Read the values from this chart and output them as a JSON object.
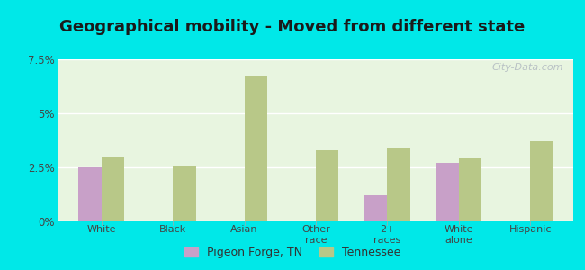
{
  "title": "Geographical mobility - Moved from different state",
  "categories": [
    "White",
    "Black",
    "Asian",
    "Other\nrace",
    "2+\nraces",
    "White\nalone",
    "Hispanic"
  ],
  "pigeon_forge": [
    2.5,
    0.0,
    0.0,
    0.0,
    1.2,
    2.7,
    0.0
  ],
  "tennessee": [
    3.0,
    2.6,
    6.7,
    3.3,
    3.4,
    2.9,
    3.7
  ],
  "pigeon_forge_color": "#c8a0c8",
  "tennessee_color": "#b8c888",
  "background_plot_top": "#e8f5e0",
  "background_plot_bottom": "#f5fff5",
  "background_fig": "#00e8e8",
  "ylim": [
    0,
    7.5
  ],
  "yticks": [
    0,
    2.5,
    5.0,
    7.5
  ],
  "ytick_labels": [
    "0%",
    "2.5%",
    "5%",
    "7.5%"
  ],
  "bar_width": 0.32,
  "title_fontsize": 13,
  "watermark": "City-Data.com"
}
